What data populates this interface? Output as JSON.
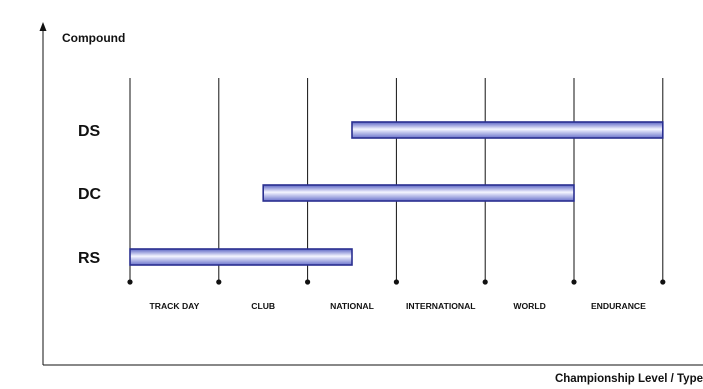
{
  "chart_data": {
    "type": "bar",
    "orientation": "horizontal-range",
    "ylabel": "Compound",
    "xlabel": "Championship Level / Type",
    "categories": [
      "TRACK DAY",
      "CLUB",
      "NATIONAL",
      "INTERNATIONAL",
      "WORLD",
      "ENDURANCE"
    ],
    "series": [
      {
        "name": "DS",
        "start": 2.5,
        "end": 6
      },
      {
        "name": "DC",
        "start": 1.5,
        "end": 5
      },
      {
        "name": "RS",
        "start": 0,
        "end": 2.5
      }
    ],
    "grid": true,
    "colors": {
      "bar_edge": "#2a2f8f",
      "bar_light": "#f4f5ff",
      "bar_mid": "#a8b0e6",
      "bar_dark": "#5a63c4",
      "axis": "#111111",
      "grid": "#111111"
    }
  }
}
